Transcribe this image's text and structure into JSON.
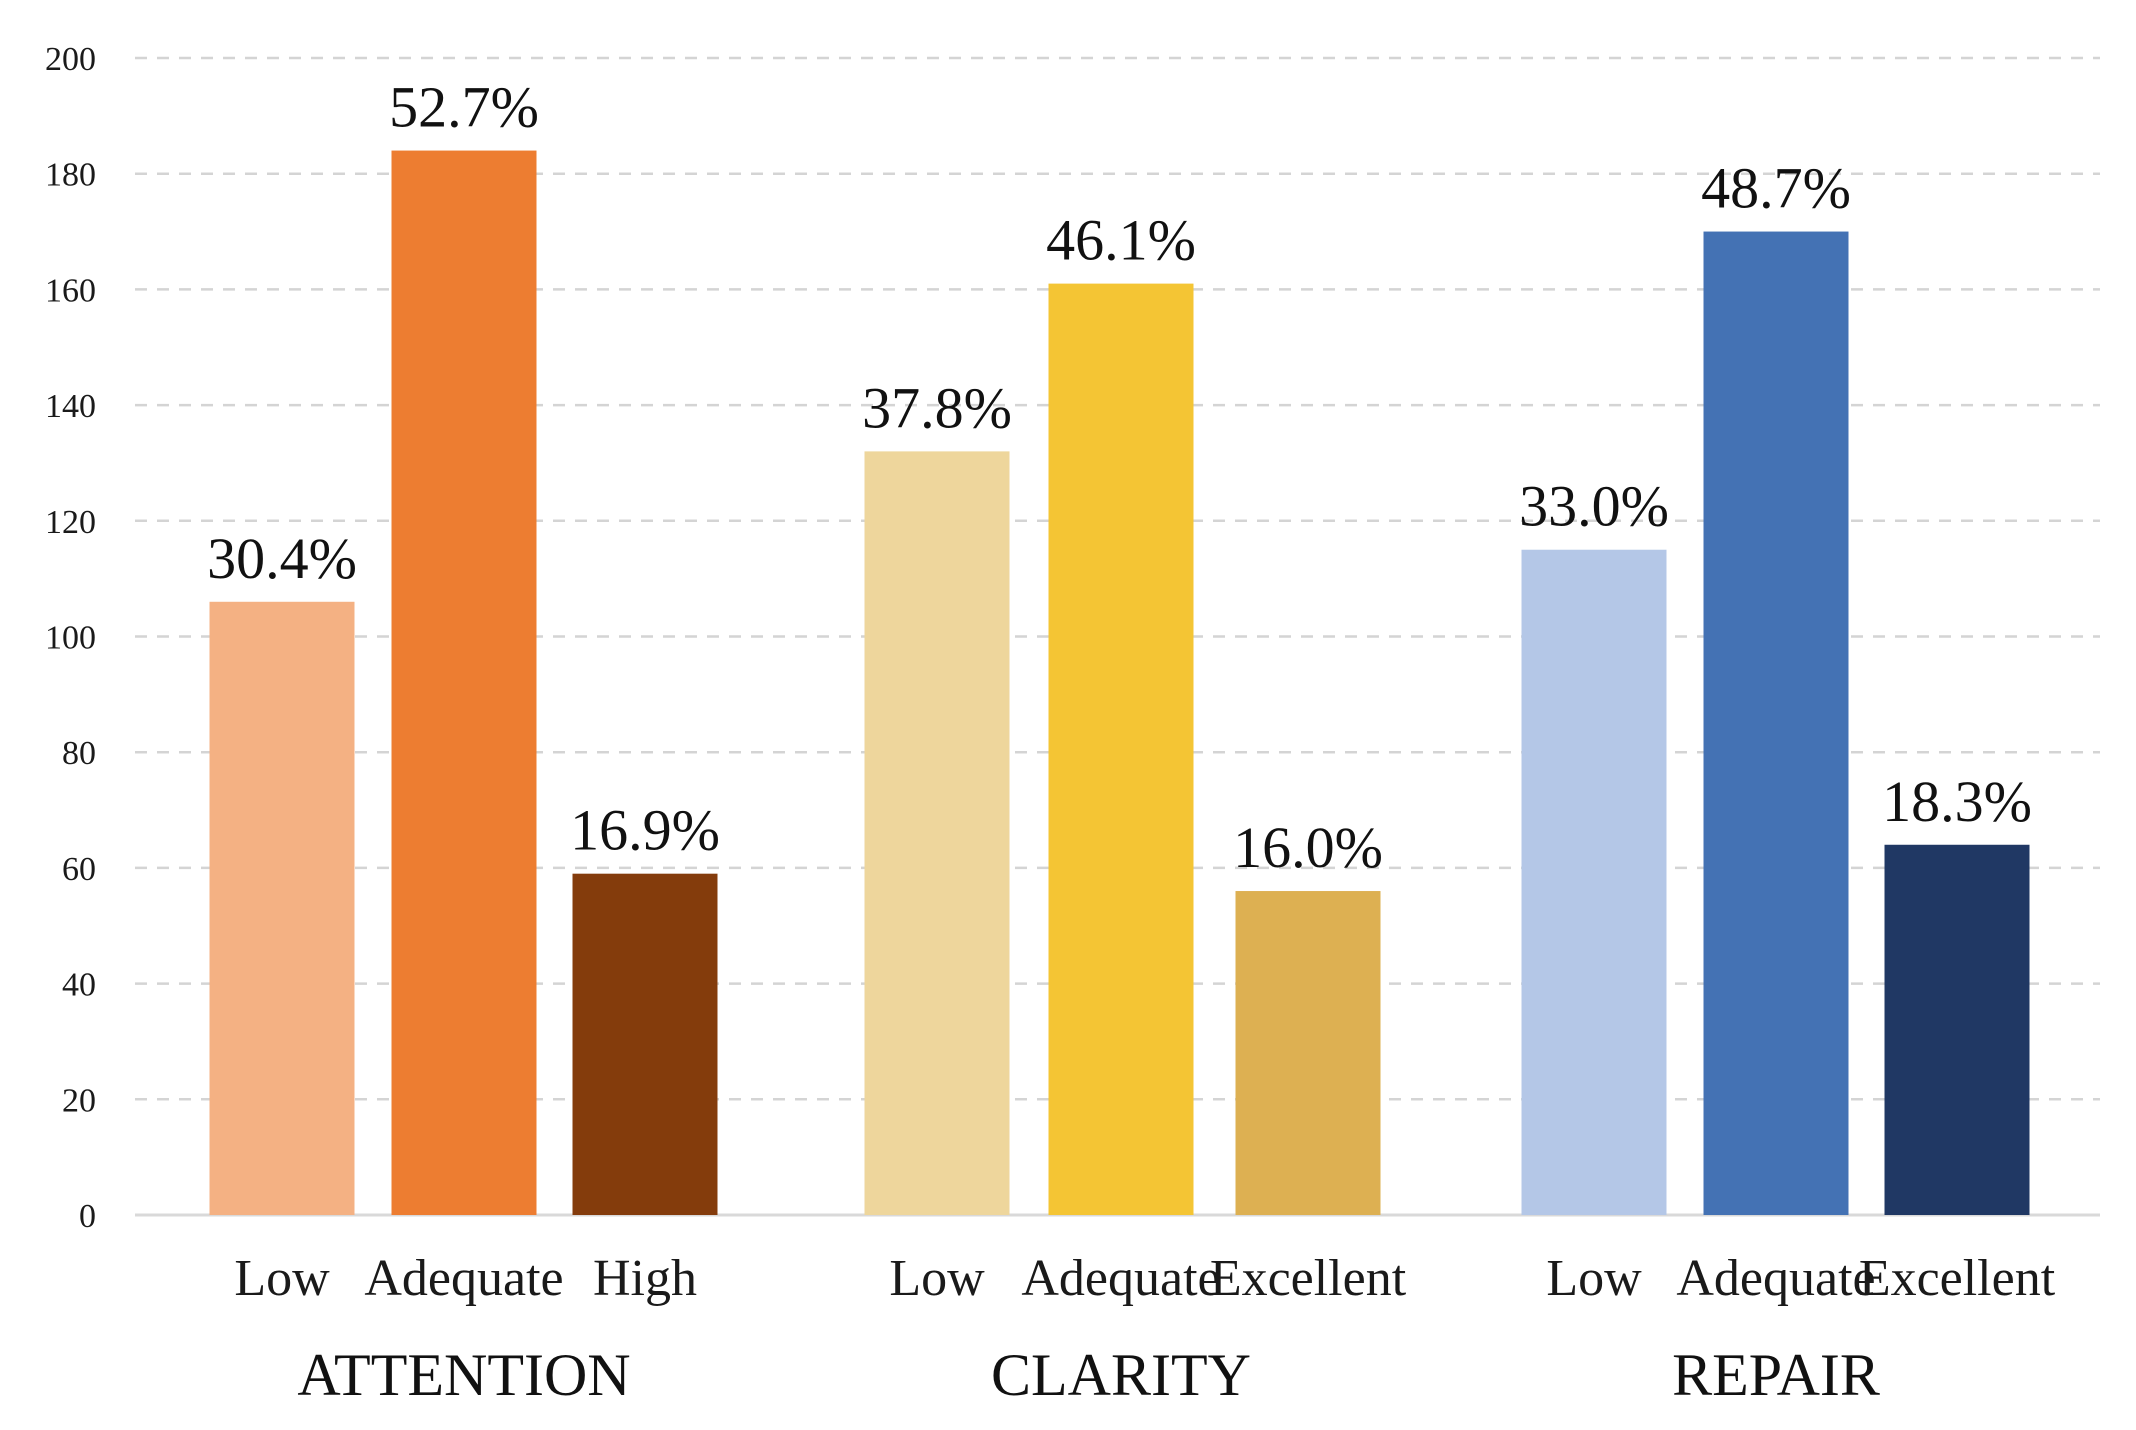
{
  "chart_data": {
    "type": "bar",
    "title": "",
    "xlabel": "",
    "ylabel": "",
    "ylim": [
      0,
      200
    ],
    "yticks": [
      0,
      20,
      40,
      60,
      80,
      100,
      120,
      140,
      160,
      180,
      200
    ],
    "grid": true,
    "legend": "none",
    "groups": [
      {
        "name": "ATTENTION",
        "bars": [
          {
            "category": "Low",
            "value": 106,
            "label": "30.4%",
            "color": "#F4B183"
          },
          {
            "category": "Adequate",
            "value": 184,
            "label": "52.7%",
            "color": "#ED7D31"
          },
          {
            "category": "High",
            "value": 59,
            "label": "16.9%",
            "color": "#843C0C"
          }
        ]
      },
      {
        "name": "CLARITY",
        "bars": [
          {
            "category": "Low",
            "value": 132,
            "label": "37.8%",
            "color": "#EED69C"
          },
          {
            "category": "Adequate",
            "value": 161,
            "label": "46.1%",
            "color": "#F4C534"
          },
          {
            "category": "Excellent",
            "value": 56,
            "label": "16.0%",
            "color": "#DDB052"
          }
        ]
      },
      {
        "name": "REPAIR",
        "bars": [
          {
            "category": "Low",
            "value": 115,
            "label": "33.0%",
            "color": "#B4C7E7"
          },
          {
            "category": "Adequate",
            "value": 170,
            "label": "48.7%",
            "color": "#4472B4"
          },
          {
            "category": "Excellent",
            "value": 64,
            "label": "18.3%",
            "color": "#203864"
          }
        ]
      }
    ]
  }
}
